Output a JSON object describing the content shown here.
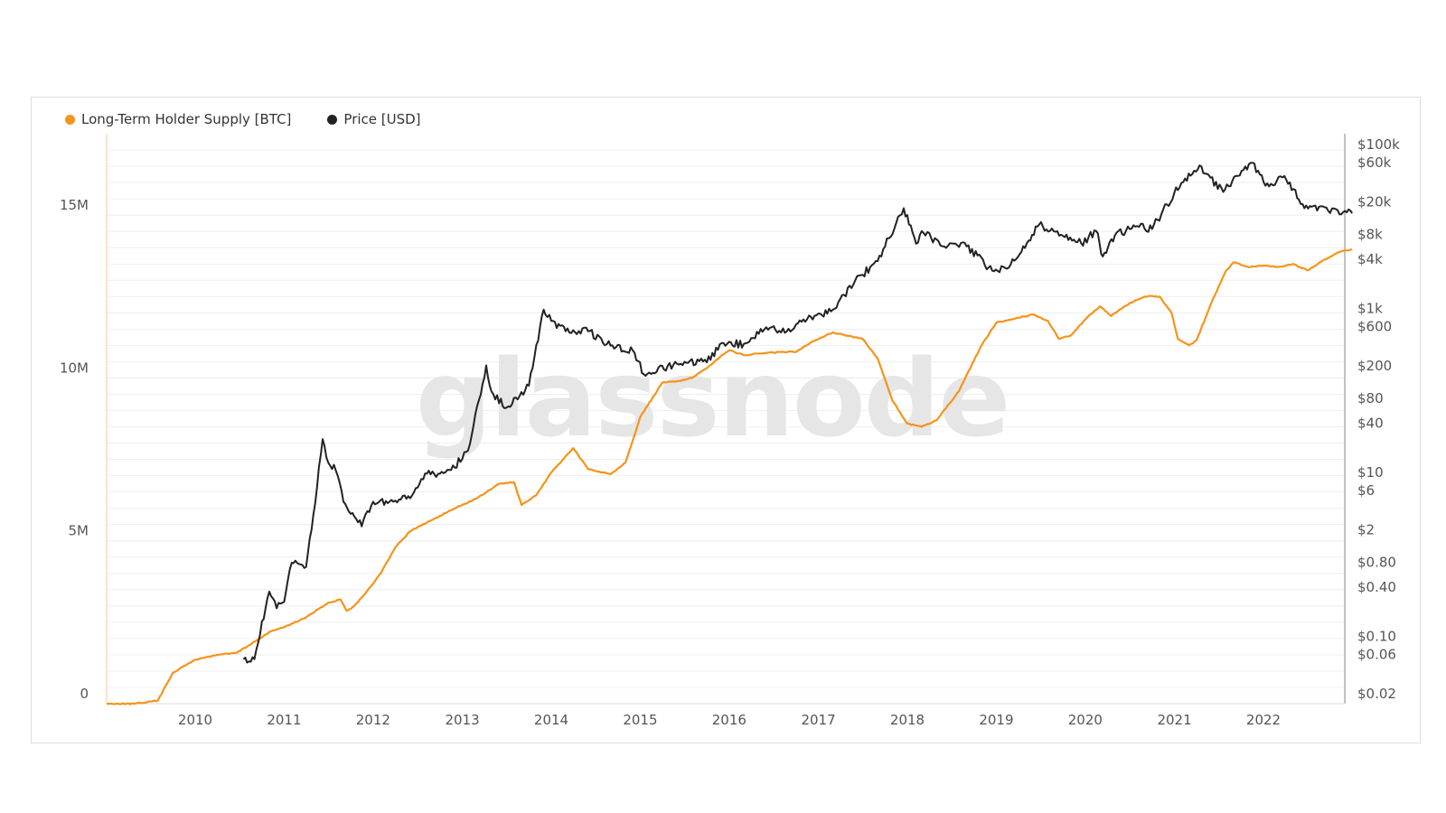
{
  "colors": {
    "lth_supply": "#f7931a",
    "price": "#222222",
    "grid": "#ececec",
    "watermark": "#e6e6e6",
    "axis_text": "#555555"
  },
  "legend": {
    "lth_label": "Long-Term Holder Supply [BTC]",
    "price_label": "Price [USD]"
  },
  "watermark": "glassnode",
  "chart_data": {
    "type": "line",
    "x_ticks": [
      "2010",
      "2011",
      "2012",
      "2013",
      "2014",
      "2015",
      "2016",
      "2017",
      "2018",
      "2019",
      "2020",
      "2021",
      "2022"
    ],
    "left_axis": {
      "ticks": [
        {
          "value": 0,
          "label": "0"
        },
        {
          "value": 5000000,
          "label": "5M"
        },
        {
          "value": 10000000,
          "label": "10M"
        },
        {
          "value": 15000000,
          "label": "15M"
        }
      ],
      "range": [
        0,
        17500000
      ]
    },
    "right_axis": {
      "scale": "log",
      "ticks": [
        {
          "value": 0.02,
          "label": "$0.02"
        },
        {
          "value": 0.06,
          "label": "$0.06"
        },
        {
          "value": 0.1,
          "label": "$0.10"
        },
        {
          "value": 0.4,
          "label": "$0.40"
        },
        {
          "value": 0.8,
          "label": "$0.80"
        },
        {
          "value": 2,
          "label": "$2"
        },
        {
          "value": 6,
          "label": "$6"
        },
        {
          "value": 10,
          "label": "$10"
        },
        {
          "value": 40,
          "label": "$40"
        },
        {
          "value": 80,
          "label": "$80"
        },
        {
          "value": 200,
          "label": "$200"
        },
        {
          "value": 600,
          "label": "$600"
        },
        {
          "value": 1000,
          "label": "$1k"
        },
        {
          "value": 4000,
          "label": "$4k"
        },
        {
          "value": 8000,
          "label": "$8k"
        },
        {
          "value": 20000,
          "label": "$20k"
        },
        {
          "value": 60000,
          "label": "$60k"
        },
        {
          "value": 100000,
          "label": "$100k"
        }
      ]
    },
    "series": [
      {
        "name": "Long-Term Holder Supply [BTC]",
        "axis": "left",
        "points": [
          [
            "2009-01-03",
            0
          ],
          [
            "2009-05-01",
            0
          ],
          [
            "2009-08-01",
            100000
          ],
          [
            "2009-10-01",
            950000
          ],
          [
            "2010-01-01",
            1350000
          ],
          [
            "2010-04-01",
            1500000
          ],
          [
            "2010-06-20",
            1560000
          ],
          [
            "2010-09-01",
            1900000
          ],
          [
            "2010-11-15",
            2250000
          ],
          [
            "2011-01-01",
            2350000
          ],
          [
            "2011-04-01",
            2650000
          ],
          [
            "2011-07-01",
            3100000
          ],
          [
            "2011-08-20",
            3200000
          ],
          [
            "2011-09-15",
            2850000
          ],
          [
            "2011-10-15",
            3000000
          ],
          [
            "2011-12-01",
            3400000
          ],
          [
            "2012-02-01",
            4000000
          ],
          [
            "2012-04-01",
            4800000
          ],
          [
            "2012-06-01",
            5300000
          ],
          [
            "2012-09-01",
            5650000
          ],
          [
            "2012-12-01",
            6000000
          ],
          [
            "2013-03-01",
            6300000
          ],
          [
            "2013-06-01",
            6750000
          ],
          [
            "2013-08-01",
            6800000
          ],
          [
            "2013-09-01",
            6100000
          ],
          [
            "2013-11-01",
            6400000
          ],
          [
            "2014-01-01",
            7100000
          ],
          [
            "2014-04-01",
            7850000
          ],
          [
            "2014-06-01",
            7200000
          ],
          [
            "2014-09-01",
            7050000
          ],
          [
            "2014-11-01",
            7400000
          ],
          [
            "2015-01-01",
            8800000
          ],
          [
            "2015-04-01",
            9850000
          ],
          [
            "2015-06-01",
            9900000
          ],
          [
            "2015-08-01",
            10000000
          ],
          [
            "2015-10-01",
            10300000
          ],
          [
            "2015-12-01",
            10700000
          ],
          [
            "2016-01-01",
            10850000
          ],
          [
            "2016-03-01",
            10700000
          ],
          [
            "2016-05-01",
            10750000
          ],
          [
            "2016-08-01",
            10800000
          ],
          [
            "2016-10-01",
            10800000
          ],
          [
            "2016-12-01",
            11100000
          ],
          [
            "2017-03-01",
            11400000
          ],
          [
            "2017-05-01",
            11300000
          ],
          [
            "2017-07-01",
            11200000
          ],
          [
            "2017-09-01",
            10600000
          ],
          [
            "2017-11-01",
            9300000
          ],
          [
            "2018-01-01",
            8600000
          ],
          [
            "2018-03-01",
            8500000
          ],
          [
            "2018-05-01",
            8700000
          ],
          [
            "2018-08-01",
            9600000
          ],
          [
            "2018-11-01",
            11000000
          ],
          [
            "2019-01-01",
            11700000
          ],
          [
            "2019-04-01",
            11850000
          ],
          [
            "2019-06-01",
            11950000
          ],
          [
            "2019-08-01",
            11750000
          ],
          [
            "2019-09-15",
            11200000
          ],
          [
            "2019-11-01",
            11300000
          ],
          [
            "2020-01-01",
            11800000
          ],
          [
            "2020-03-01",
            12200000
          ],
          [
            "2020-04-15",
            11900000
          ],
          [
            "2020-07-01",
            12300000
          ],
          [
            "2020-09-01",
            12500000
          ],
          [
            "2020-11-01",
            12500000
          ],
          [
            "2020-12-20",
            12000000
          ],
          [
            "2021-01-15",
            11200000
          ],
          [
            "2021-03-01",
            11000000
          ],
          [
            "2021-04-01",
            11150000
          ],
          [
            "2021-06-01",
            12300000
          ],
          [
            "2021-08-01",
            13300000
          ],
          [
            "2021-09-01",
            13550000
          ],
          [
            "2021-11-01",
            13400000
          ],
          [
            "2022-01-01",
            13450000
          ],
          [
            "2022-03-01",
            13400000
          ],
          [
            "2022-05-01",
            13500000
          ],
          [
            "2022-07-01",
            13300000
          ],
          [
            "2022-09-01",
            13600000
          ],
          [
            "2022-11-01",
            13850000
          ],
          [
            "2022-12-31",
            13950000
          ]
        ]
      },
      {
        "name": "Price [USD]",
        "axis": "right",
        "points": [
          [
            "2010-07-18",
            0.06
          ],
          [
            "2010-09-01",
            0.06
          ],
          [
            "2010-11-01",
            0.4
          ],
          [
            "2010-12-01",
            0.25
          ],
          [
            "2011-01-01",
            0.3
          ],
          [
            "2011-02-01",
            0.9
          ],
          [
            "2011-04-01",
            0.8
          ],
          [
            "2011-05-01",
            3.5
          ],
          [
            "2011-06-08",
            29
          ],
          [
            "2011-07-01",
            15
          ],
          [
            "2011-08-01",
            12
          ],
          [
            "2011-09-01",
            5
          ],
          [
            "2011-11-15",
            2.5
          ],
          [
            "2012-01-01",
            5
          ],
          [
            "2012-03-01",
            4.8
          ],
          [
            "2012-06-01",
            5.5
          ],
          [
            "2012-08-01",
            11
          ],
          [
            "2012-10-01",
            11
          ],
          [
            "2012-12-01",
            13
          ],
          [
            "2013-02-01",
            25
          ],
          [
            "2013-04-09",
            230
          ],
          [
            "2013-05-01",
            110
          ],
          [
            "2013-07-01",
            70
          ],
          [
            "2013-10-01",
            130
          ],
          [
            "2013-12-01",
            1100
          ],
          [
            "2014-01-01",
            800
          ],
          [
            "2014-03-01",
            600
          ],
          [
            "2014-06-01",
            600
          ],
          [
            "2014-09-01",
            400
          ],
          [
            "2014-12-01",
            350
          ],
          [
            "2015-01-15",
            180
          ],
          [
            "2015-06-01",
            240
          ],
          [
            "2015-10-01",
            250
          ],
          [
            "2015-12-01",
            430
          ],
          [
            "2016-03-01",
            420
          ],
          [
            "2016-06-01",
            670
          ],
          [
            "2016-08-01",
            580
          ],
          [
            "2016-12-01",
            900
          ],
          [
            "2017-03-01",
            1100
          ],
          [
            "2017-06-01",
            2500
          ],
          [
            "2017-09-01",
            4300
          ],
          [
            "2017-12-17",
            19000
          ],
          [
            "2018-02-06",
            7000
          ],
          [
            "2018-03-01",
            10000
          ],
          [
            "2018-06-01",
            6500
          ],
          [
            "2018-09-01",
            6500
          ],
          [
            "2018-12-15",
            3300
          ],
          [
            "2019-03-01",
            3900
          ],
          [
            "2019-06-26",
            12000
          ],
          [
            "2019-09-01",
            9800
          ],
          [
            "2019-12-15",
            7100
          ],
          [
            "2020-02-15",
            10000
          ],
          [
            "2020-03-13",
            4900
          ],
          [
            "2020-05-01",
            8800
          ],
          [
            "2020-08-01",
            11500
          ],
          [
            "2020-10-01",
            10600
          ],
          [
            "2020-12-31",
            29000
          ],
          [
            "2021-04-14",
            63000
          ],
          [
            "2021-07-20",
            30000
          ],
          [
            "2021-11-10",
            68000
          ],
          [
            "2022-01-24",
            35000
          ],
          [
            "2022-03-28",
            47000
          ],
          [
            "2022-06-18",
            19000
          ],
          [
            "2022-09-01",
            20000
          ],
          [
            "2022-11-09",
            16000
          ],
          [
            "2022-12-31",
            16500
          ]
        ]
      }
    ]
  }
}
